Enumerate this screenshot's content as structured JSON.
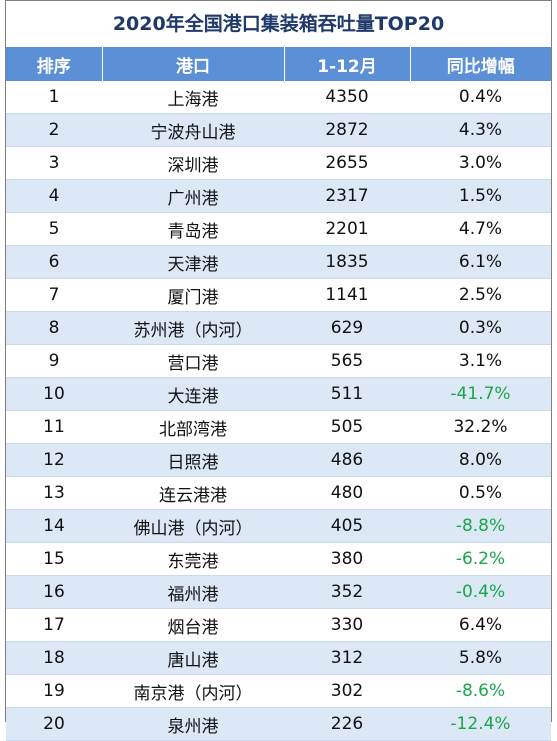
{
  "title": "2020年全国港口集装箱吞吐量TOP20",
  "headers": [
    "排序",
    "港口",
    "1-12月",
    "同比增幅"
  ],
  "colors": {
    "header_bg": "#5b8fd6",
    "title": "#1f3a6a",
    "alt_row": "#dde8f6",
    "negative": "#1aa64b"
  },
  "rows": [
    {
      "rank": "1",
      "port": "上海港",
      "value": "4350",
      "growth": "0.4%",
      "negative": false
    },
    {
      "rank": "2",
      "port": "宁波舟山港",
      "value": "2872",
      "growth": "4.3%",
      "negative": false
    },
    {
      "rank": "3",
      "port": "深圳港",
      "value": "2655",
      "growth": "3.0%",
      "negative": false
    },
    {
      "rank": "4",
      "port": "广州港",
      "value": "2317",
      "growth": "1.5%",
      "negative": false
    },
    {
      "rank": "5",
      "port": "青岛港",
      "value": "2201",
      "growth": "4.7%",
      "negative": false
    },
    {
      "rank": "6",
      "port": "天津港",
      "value": "1835",
      "growth": "6.1%",
      "negative": false
    },
    {
      "rank": "7",
      "port": "厦门港",
      "value": "1141",
      "growth": "2.5%",
      "negative": false
    },
    {
      "rank": "8",
      "port": "苏州港（内河）",
      "value": "629",
      "growth": "0.3%",
      "negative": false
    },
    {
      "rank": "9",
      "port": "营口港",
      "value": "565",
      "growth": "3.1%",
      "negative": false
    },
    {
      "rank": "10",
      "port": "大连港",
      "value": "511",
      "growth": "-41.7%",
      "negative": true
    },
    {
      "rank": "11",
      "port": "北部湾港",
      "value": "505",
      "growth": "32.2%",
      "negative": false
    },
    {
      "rank": "12",
      "port": "日照港",
      "value": "486",
      "growth": "8.0%",
      "negative": false
    },
    {
      "rank": "13",
      "port": "连云港港",
      "value": "480",
      "growth": "0.5%",
      "negative": false
    },
    {
      "rank": "14",
      "port": "佛山港（内河）",
      "value": "405",
      "growth": "-8.8%",
      "negative": true
    },
    {
      "rank": "15",
      "port": "东莞港",
      "value": "380",
      "growth": "-6.2%",
      "negative": true
    },
    {
      "rank": "16",
      "port": "福州港",
      "value": "352",
      "growth": "-0.4%",
      "negative": true
    },
    {
      "rank": "17",
      "port": "烟台港",
      "value": "330",
      "growth": "6.4%",
      "negative": false
    },
    {
      "rank": "18",
      "port": "唐山港",
      "value": "312",
      "growth": "5.8%",
      "negative": false
    },
    {
      "rank": "19",
      "port": "南京港（内河）",
      "value": "302",
      "growth": "-8.6%",
      "negative": true
    },
    {
      "rank": "20",
      "port": "泉州港",
      "value": "226",
      "growth": "-12.4%",
      "negative": true
    }
  ]
}
